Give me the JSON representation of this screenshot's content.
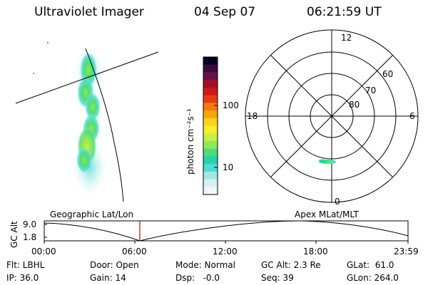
{
  "header": {
    "instrument": "Ultraviolet Imager",
    "date": "04 Sep 07",
    "time": "06:21:59 UT"
  },
  "colorbar": {
    "unit_label": "photon cm⁻²s⁻¹",
    "tick_labels": [
      "100",
      "10"
    ],
    "colors": [
      "#000022",
      "#3a0a3e",
      "#6a0f4a",
      "#a0102a",
      "#cc1818",
      "#e83a18",
      "#f27a10",
      "#f7a508",
      "#fbd21a",
      "#f4ee30",
      "#c8f040",
      "#8ee85a",
      "#4fdc78",
      "#28d2a8",
      "#50dcd0",
      "#a0e8e4",
      "#d6f2f0",
      "#eef8f8"
    ]
  },
  "polar_plot": {
    "mlt_labels": {
      "top": "12",
      "left": "18",
      "right": "6",
      "bottom": "0"
    },
    "lat_labels": [
      "60",
      "70",
      "80"
    ],
    "frame_label": "Apex MLat/MLT"
  },
  "geo_plot": {
    "frame_label": "Geographic Lat/Lon"
  },
  "altitude_plot": {
    "axis_label": "GC Alt",
    "y_tick_labels": [
      "9.0",
      "1.8"
    ],
    "x_tick_labels": [
      "00:00",
      "06:00",
      "12:00",
      "18:00",
      "23:59"
    ],
    "current_time_marker": "06:21:59",
    "marker_color": "#cc0000"
  },
  "status": {
    "filter": "Flt: LBHL",
    "ip": "IP: 36.0",
    "door": "Door: Open",
    "gain": "Gain: 14",
    "mode": "Mode: Normal",
    "dsp": "Dsp:   -0.0",
    "gc_alt": "GC Alt: 2.3 Re",
    "seq": "Seq: 39",
    "glat": "GLat:  61.0",
    "glon": "GLon: 264.0"
  }
}
